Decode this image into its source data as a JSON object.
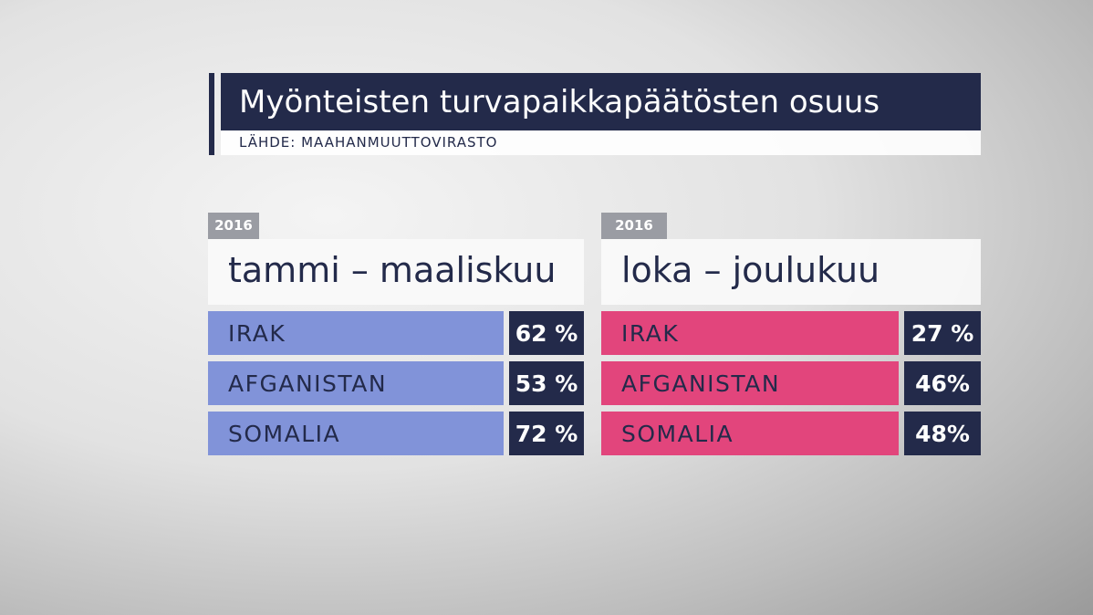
{
  "header": {
    "title": "Myönteisten turvapaikkapäätösten osuus",
    "source": "LÄHDE: MAAHANMUUTTOVIRASTO"
  },
  "panels": [
    {
      "year": "2016",
      "period": "tammi – maaliskuu",
      "color": "#8193d9",
      "rows": [
        {
          "country": "IRAK",
          "share": "62 %"
        },
        {
          "country": "AFGANISTAN",
          "share": "53 %"
        },
        {
          "country": "SOMALIA",
          "share": "72 %"
        }
      ]
    },
    {
      "year": "2016",
      "period": "loka – joulukuu",
      "color": "#e2457c",
      "rows": [
        {
          "country": "IRAK",
          "share": "27 %"
        },
        {
          "country": "AFGANISTAN",
          "share": "46%"
        },
        {
          "country": "SOMALIA",
          "share": "48%"
        }
      ]
    }
  ]
}
